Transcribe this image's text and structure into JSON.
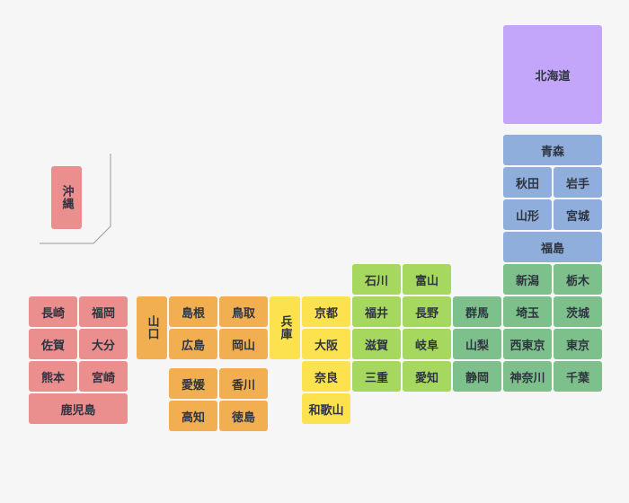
{
  "colors": {
    "hokkaido": "#c3a6f9",
    "tohoku": "#8faedb",
    "kanto": "#7dc08b",
    "chubu": "#a6d85f",
    "kinki": "#fde24f",
    "chugoku_shikoku": "#f1af52",
    "kyushu_okinawa": "#ea8e8e"
  },
  "prefectures": {
    "hokkaido": "北海道",
    "aomori": "青森",
    "akita": "秋田",
    "iwate": "岩手",
    "yamagata": "山形",
    "miyagi": "宮城",
    "fukushima": "福島",
    "niigata": "新潟",
    "tochigi": "栃木",
    "gunma": "群馬",
    "saitama": "埼玉",
    "ibaraki": "茨城",
    "yamanashi": "山梨",
    "nishi_tokyo": "西東京",
    "tokyo": "東京",
    "shizuoka": "静岡",
    "kanagawa": "神奈川",
    "chiba": "千葉",
    "ishikawa": "石川",
    "toyama": "富山",
    "fukui": "福井",
    "nagano": "長野",
    "shiga": "滋賀",
    "gifu": "岐阜",
    "mie": "三重",
    "aichi": "愛知",
    "hyogo": "兵庫",
    "kyoto": "京都",
    "osaka": "大阪",
    "nara": "奈良",
    "wakayama": "和歌山",
    "yamaguchi": "山口",
    "shimane": "島根",
    "tottori": "鳥取",
    "hiroshima": "広島",
    "okayama": "岡山",
    "ehime": "愛媛",
    "kagawa": "香川",
    "kochi": "高知",
    "tokushima": "徳島",
    "nagasaki": "長崎",
    "fukuoka": "福岡",
    "saga": "佐賀",
    "oita": "大分",
    "kumamoto": "熊本",
    "miyazaki": "宮崎",
    "kagoshima": "鹿児島",
    "okinawa": "沖縄"
  }
}
